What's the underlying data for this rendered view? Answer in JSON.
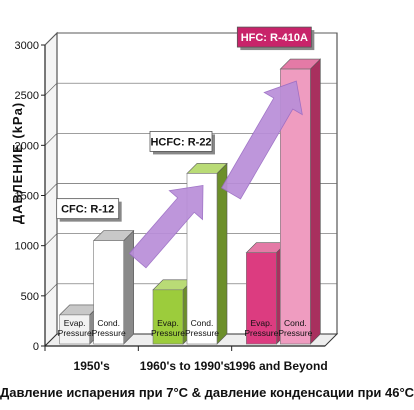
{
  "chart_data": {
    "type": "bar",
    "ylabel": "ДАВЛЕНИЕ (kPa)",
    "xlabel": "Давление испарения при 7°C & давление конденсации при 46°C",
    "ylim": [
      0,
      3000
    ],
    "yticks": [
      0,
      500,
      1000,
      1500,
      2000,
      2500,
      3000
    ],
    "categories": [
      "1950's",
      "1960's to 1990's",
      "1996 and Beyond"
    ],
    "refrigerants": [
      "CFC: R-12",
      "HCFC: R-22",
      "HFC: R-410A"
    ],
    "series": [
      {
        "name": "Evap. Pressure",
        "values": [
          310,
          560,
          930
        ]
      },
      {
        "name": "Cond. Pressure",
        "values": [
          1050,
          1720,
          2760
        ]
      }
    ],
    "group_colors": [
      {
        "evap": "#f2f2f2",
        "cond": "#ffffff",
        "side": "#8a8a8a",
        "top": "#c8c8c8"
      },
      {
        "evap": "#9ccc3c",
        "cond": "#ffffff",
        "side": "#6c8f2a",
        "top": "#b9db76"
      },
      {
        "evap": "#dc3c80",
        "cond": "#ef9cc0",
        "side": "#a8305e",
        "top": "#e47aa6"
      }
    ],
    "arrow_color": "#b98ed8",
    "grid": true,
    "style": "3d-bar"
  }
}
